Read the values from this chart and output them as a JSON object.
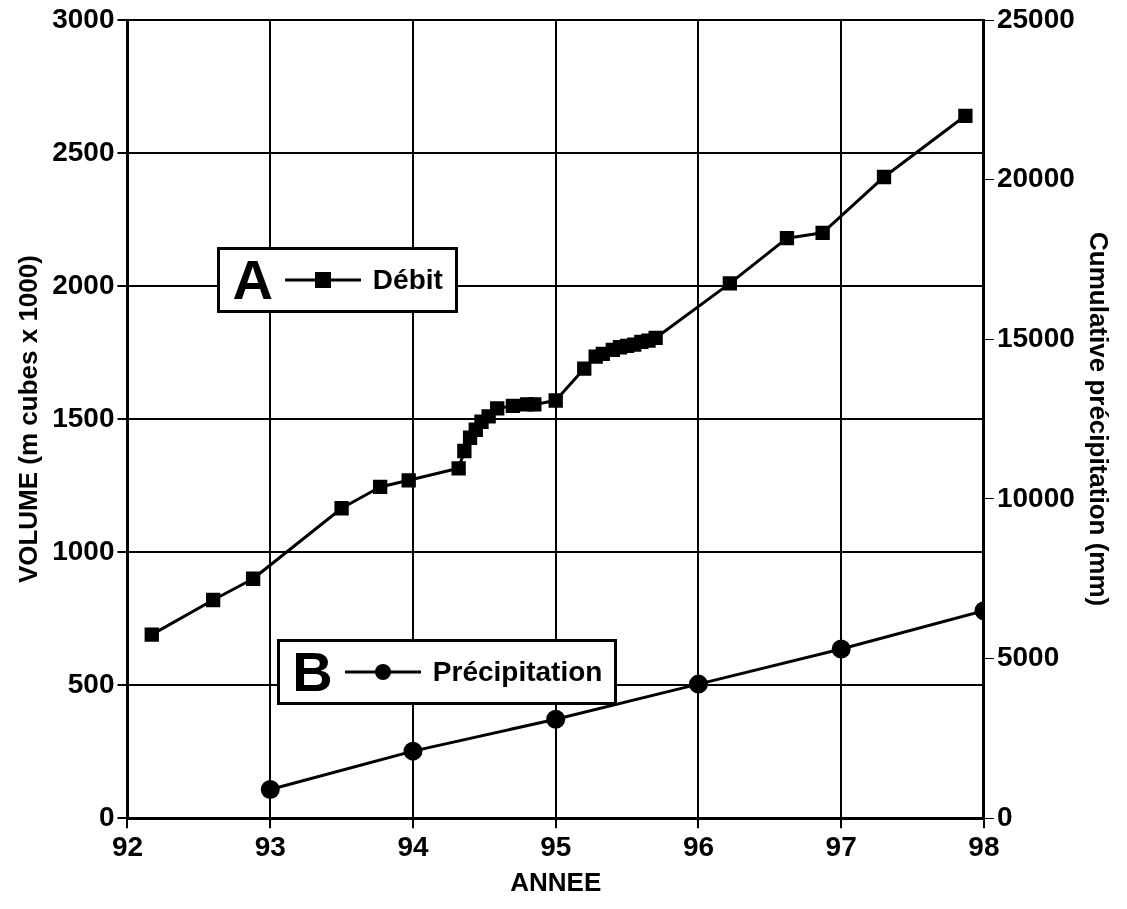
{
  "chart_data": {
    "type": "line",
    "xlabel": "ANNEE",
    "ylabel": "VOLUME (m cubes x 1000)",
    "y2label": "Cumulative précipitation (mm)",
    "xlim": [
      92,
      98
    ],
    "xticks": [
      92,
      93,
      94,
      95,
      96,
      97,
      98
    ],
    "ylim": [
      0,
      3000
    ],
    "yticks": [
      0,
      500,
      1000,
      1500,
      2000,
      2500,
      3000
    ],
    "y2lim": [
      0,
      25000
    ],
    "y2ticks": [
      0,
      5000,
      10000,
      15000,
      20000,
      25000
    ],
    "grid": true,
    "legend": "left",
    "annotations": [
      "A",
      "B"
    ],
    "series": [
      {
        "name": "Débit",
        "color": "#000000",
        "marker": "square",
        "x": [
          92.17,
          92.6,
          92.88,
          93.5,
          93.77,
          93.97,
          94.32,
          94.36,
          94.4,
          94.44,
          94.48,
          94.53,
          94.59,
          94.7,
          94.8,
          94.85,
          95.0,
          95.2,
          95.28,
          95.33,
          95.4,
          95.45,
          95.5,
          95.55,
          95.6,
          95.65,
          95.7,
          96.22,
          96.62,
          96.87,
          97.3,
          97.87
        ],
        "values": [
          690,
          820,
          900,
          1165,
          1245,
          1270,
          1315,
          1380,
          1430,
          1460,
          1490,
          1510,
          1540,
          1550,
          1555,
          1555,
          1570,
          1690,
          1735,
          1745,
          1760,
          1770,
          1775,
          1780,
          1790,
          1795,
          1805,
          2010,
          2180,
          2200,
          2410,
          2640
        ]
      },
      {
        "name": "Précipitation",
        "color": "#000000",
        "marker": "circle",
        "axis": "y2",
        "x": [
          93,
          94,
          95,
          96,
          97,
          98
        ],
        "values": [
          900,
          2100,
          3100,
          4200,
          5300,
          6500
        ]
      }
    ]
  }
}
